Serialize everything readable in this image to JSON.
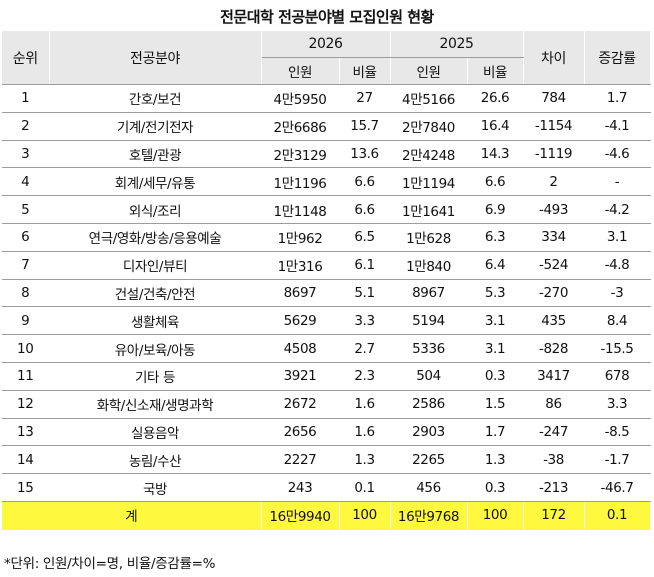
{
  "title": "전문대학 전공분야별 모집인원 현황",
  "headers": {
    "rank": "순위",
    "field": "전공분야",
    "year_a": "2026",
    "year_b": "2025",
    "diff": "차이",
    "rate": "증감률",
    "count": "인원",
    "ratio": "비율"
  },
  "rows": [
    {
      "rank": "1",
      "field": "간호/보건",
      "c2026": "4만5950",
      "r2026": "27",
      "c2025": "4만5166",
      "r2025": "26.6",
      "diff": "784",
      "rate": "1.7"
    },
    {
      "rank": "2",
      "field": "기계/전기전자",
      "c2026": "2만6686",
      "r2026": "15.7",
      "c2025": "2만7840",
      "r2025": "16.4",
      "diff": "-1154",
      "rate": "-4.1"
    },
    {
      "rank": "3",
      "field": "호텔/관광",
      "c2026": "2만3129",
      "r2026": "13.6",
      "c2025": "2만4248",
      "r2025": "14.3",
      "diff": "-1119",
      "rate": "-4.6"
    },
    {
      "rank": "4",
      "field": "회계/세무/유통",
      "c2026": "1만1196",
      "r2026": "6.6",
      "c2025": "1만1194",
      "r2025": "6.6",
      "diff": "2",
      "rate": "-"
    },
    {
      "rank": "5",
      "field": "외식/조리",
      "c2026": "1만1148",
      "r2026": "6.6",
      "c2025": "1만1641",
      "r2025": "6.9",
      "diff": "-493",
      "rate": "-4.2"
    },
    {
      "rank": "6",
      "field": "연극/영화/방송/응용예술",
      "c2026": "1만962",
      "r2026": "6.5",
      "c2025": "1만628",
      "r2025": "6.3",
      "diff": "334",
      "rate": "3.1"
    },
    {
      "rank": "7",
      "field": "디자인/뷰티",
      "c2026": "1만316",
      "r2026": "6.1",
      "c2025": "1만840",
      "r2025": "6.4",
      "diff": "-524",
      "rate": "-4.8"
    },
    {
      "rank": "8",
      "field": "건설/건축/안전",
      "c2026": "8697",
      "r2026": "5.1",
      "c2025": "8967",
      "r2025": "5.3",
      "diff": "-270",
      "rate": "-3"
    },
    {
      "rank": "9",
      "field": "생활체육",
      "c2026": "5629",
      "r2026": "3.3",
      "c2025": "5194",
      "r2025": "3.1",
      "diff": "435",
      "rate": "8.4"
    },
    {
      "rank": "10",
      "field": "유아/보육/아동",
      "c2026": "4508",
      "r2026": "2.7",
      "c2025": "5336",
      "r2025": "3.1",
      "diff": "-828",
      "rate": "-15.5"
    },
    {
      "rank": "11",
      "field": "기타 등",
      "c2026": "3921",
      "r2026": "2.3",
      "c2025": "504",
      "r2025": "0.3",
      "diff": "3417",
      "rate": "678"
    },
    {
      "rank": "12",
      "field": "화학/신소재/생명과학",
      "c2026": "2672",
      "r2026": "1.6",
      "c2025": "2586",
      "r2025": "1.5",
      "diff": "86",
      "rate": "3.3"
    },
    {
      "rank": "13",
      "field": "실용음악",
      "c2026": "2656",
      "r2026": "1.6",
      "c2025": "2903",
      "r2025": "1.7",
      "diff": "-247",
      "rate": "-8.5"
    },
    {
      "rank": "14",
      "field": "농림/수산",
      "c2026": "2227",
      "r2026": "1.3",
      "c2025": "2265",
      "r2025": "1.3",
      "diff": "-38",
      "rate": "-1.7"
    },
    {
      "rank": "15",
      "field": "국방",
      "c2026": "243",
      "r2026": "0.1",
      "c2025": "456",
      "r2025": "0.3",
      "diff": "-213",
      "rate": "-46.7"
    }
  ],
  "total": {
    "label": "계",
    "c2026": "16만9940",
    "r2026": "100",
    "c2025": "16만9768",
    "r2025": "100",
    "diff": "172",
    "rate": "0.1"
  },
  "footnote": "*단위: 인원/차이=명, 비율/증감률=%",
  "colors": {
    "header_bg": "#e8e8e8",
    "total_row_bg": "#fef83e",
    "row_divider": "#9c9c9c"
  }
}
